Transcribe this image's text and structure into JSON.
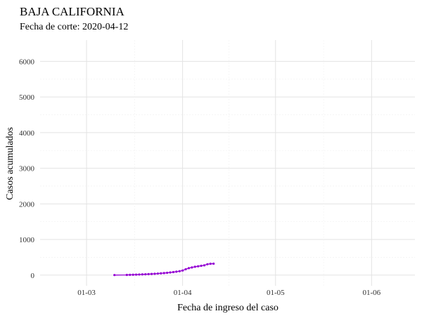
{
  "chart_data": {
    "type": "line",
    "title": "BAJA CALIFORNIA",
    "subtitle": "Fecha de corte: 2020-04-12",
    "xlabel": "Fecha de ingreso del caso",
    "ylabel": "Casos acumulados",
    "xlim": [
      "2020-02-15",
      "2020-06-15"
    ],
    "ylim": [
      -300,
      6600
    ],
    "x_ticks": [
      {
        "value": "2020-03-01",
        "label": "01-03"
      },
      {
        "value": "2020-04-01",
        "label": "01-04"
      },
      {
        "value": "2020-05-01",
        "label": "01-05"
      },
      {
        "value": "2020-06-01",
        "label": "01-06"
      }
    ],
    "y_ticks": [
      0,
      1000,
      2000,
      3000,
      4000,
      5000,
      6000
    ],
    "grid": true,
    "legend": "none",
    "color": "#9400d3",
    "series": [
      {
        "x": [
          "2020-03-10",
          "2020-03-14",
          "2020-03-15",
          "2020-03-16",
          "2020-03-17",
          "2020-03-18",
          "2020-03-19",
          "2020-03-20",
          "2020-03-21",
          "2020-03-22",
          "2020-03-23",
          "2020-03-24",
          "2020-03-25",
          "2020-03-26",
          "2020-03-27",
          "2020-03-28",
          "2020-03-29",
          "2020-03-30",
          "2020-03-31",
          "2020-04-01",
          "2020-04-02",
          "2020-04-03",
          "2020-04-04",
          "2020-04-05",
          "2020-04-06",
          "2020-04-07",
          "2020-04-08",
          "2020-04-09",
          "2020-04-10",
          "2020-04-11"
        ],
        "values": [
          2,
          5,
          8,
          11,
          14,
          17,
          20,
          24,
          28,
          33,
          38,
          44,
          50,
          57,
          65,
          75,
          85,
          97,
          110,
          130,
          165,
          195,
          215,
          235,
          248,
          262,
          275,
          305,
          318,
          322
        ]
      }
    ]
  }
}
